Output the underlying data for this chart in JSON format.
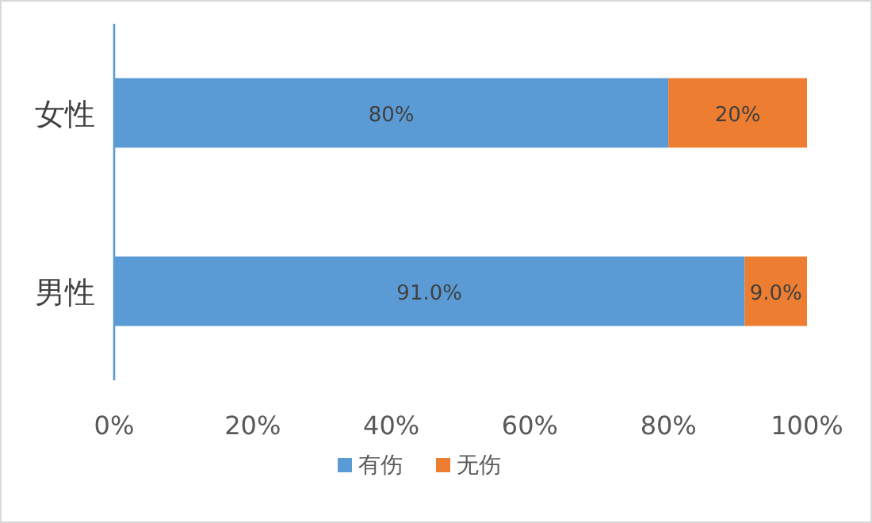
{
  "chart_data": {
    "type": "bar",
    "orientation": "horizontal",
    "stacked": true,
    "categories": [
      "女性",
      "男性"
    ],
    "series": [
      {
        "name": "有伤",
        "color": "#5b9bd5",
        "values": [
          80,
          91.0
        ],
        "value_labels": [
          "80%",
          "91.0%"
        ]
      },
      {
        "name": "无伤",
        "color": "#ed7d31",
        "values": [
          20,
          9.0
        ],
        "value_labels": [
          "20%",
          "9.0%"
        ]
      }
    ],
    "xlim": [
      0,
      100
    ],
    "xticks": [
      {
        "value": 0,
        "label": "0%"
      },
      {
        "value": 20,
        "label": "20%"
      },
      {
        "value": 40,
        "label": "40%"
      },
      {
        "value": 60,
        "label": "60%"
      },
      {
        "value": 80,
        "label": "80%"
      },
      {
        "value": 100,
        "label": "100%"
      }
    ],
    "legend": "bottom"
  }
}
